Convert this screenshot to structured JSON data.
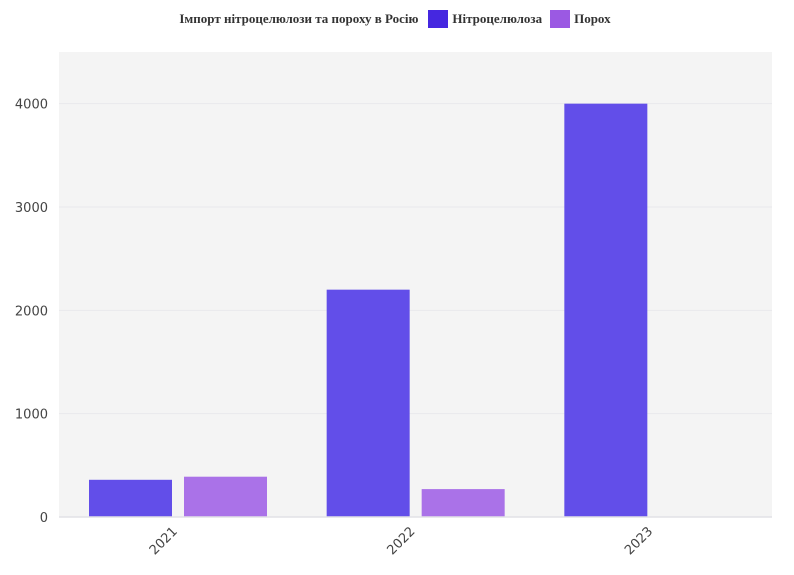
{
  "chart_data": {
    "type": "bar",
    "title": "Імпорт нітроцелюлози та пороху в Росію",
    "xlabel": "",
    "ylabel": "",
    "categories": [
      "2021",
      "2022",
      "2023"
    ],
    "series": [
      {
        "name": "Нітроцелюлоза",
        "values": [
          360,
          2200,
          4000
        ]
      },
      {
        "name": "Порох",
        "values": [
          390,
          270,
          0
        ]
      }
    ],
    "ylim": [
      0,
      4500
    ],
    "yticks": [
      0,
      1000,
      2000,
      3000,
      4000
    ],
    "grid": true,
    "legend_position": "top-center"
  },
  "colors": {
    "series_swatches": [
      "#4527e0",
      "#9b59e3"
    ],
    "series_bars": [
      "#624ee9",
      "#aa72e8"
    ],
    "plot_background": "#f4f4f4",
    "gridline": "#e9e9ec"
  }
}
